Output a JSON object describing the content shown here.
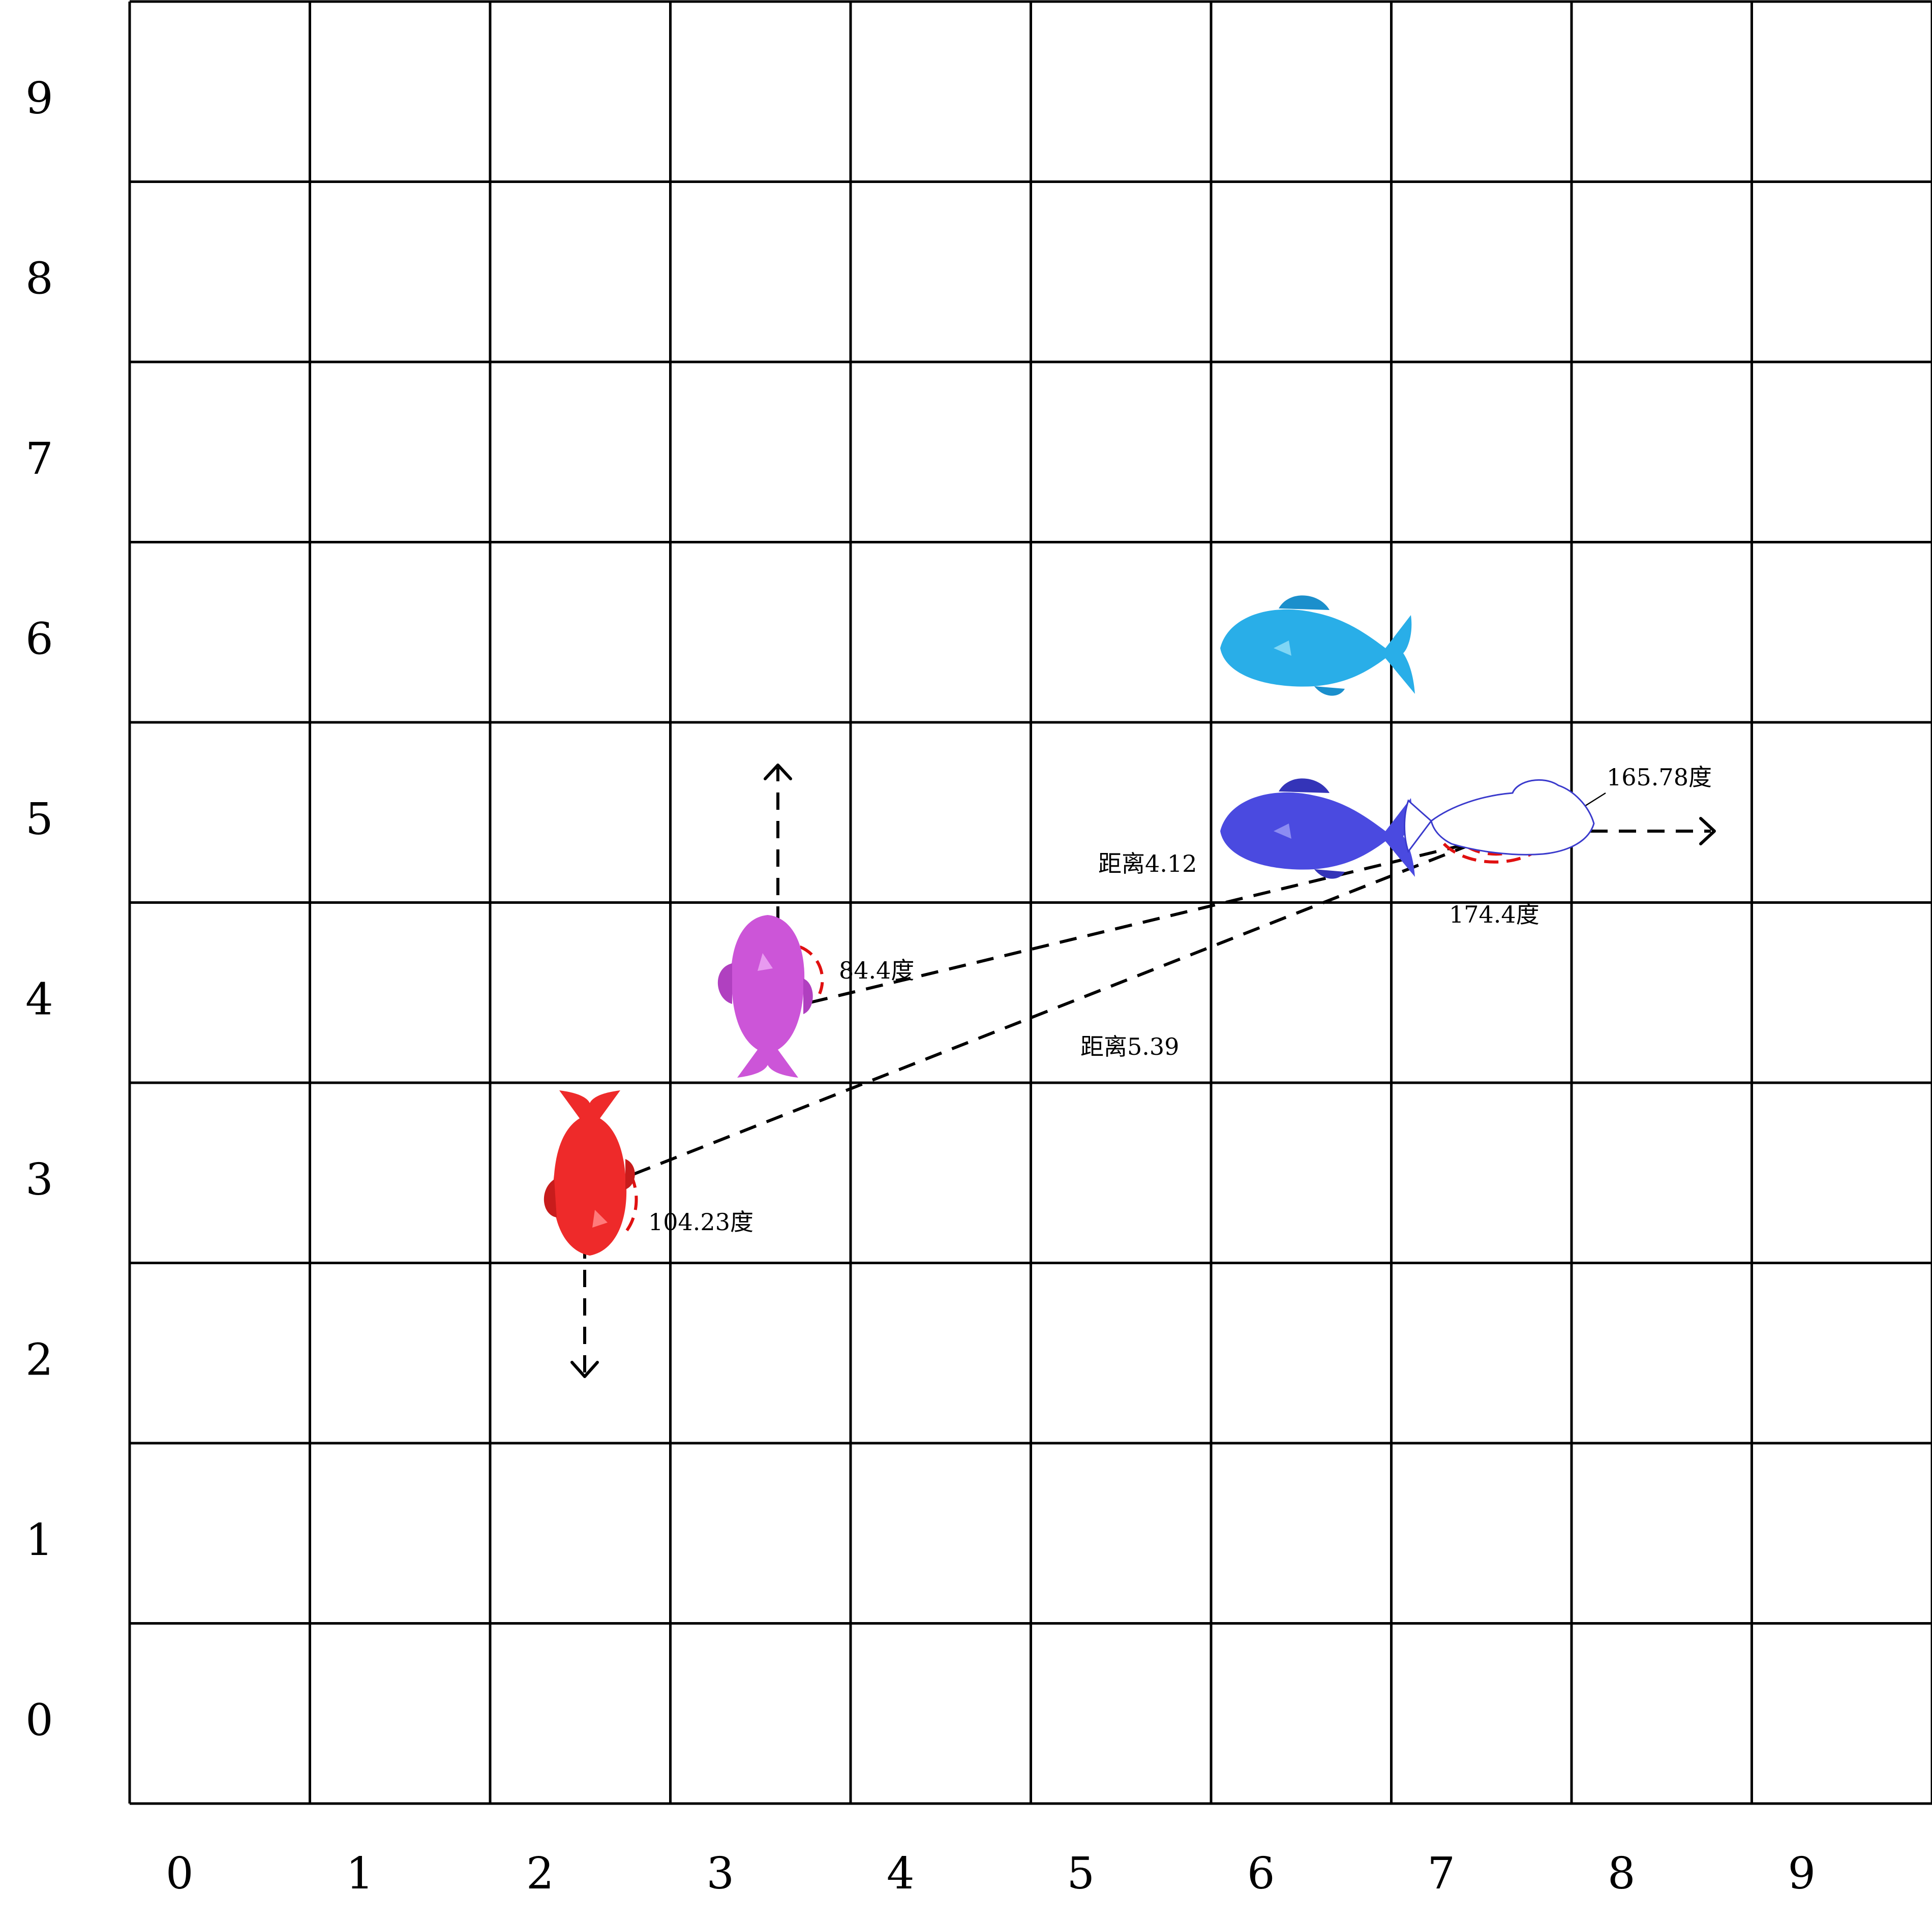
{
  "grid": {
    "cols": 10,
    "rows": 10,
    "x_labels": [
      "0",
      "1",
      "2",
      "3",
      "4",
      "5",
      "6",
      "7",
      "8",
      "9"
    ],
    "y_labels": [
      "0",
      "1",
      "2",
      "3",
      "4",
      "5",
      "6",
      "7",
      "8",
      "9"
    ]
  },
  "pieces": [
    {
      "id": "cyan-fish",
      "color": "#29aee8",
      "cell": [
        6,
        6
      ],
      "facing": "left",
      "style": "solid"
    },
    {
      "id": "blue-fish",
      "color": "#4a4ae0",
      "cell": [
        6,
        5
      ],
      "facing": "left",
      "style": "solid"
    },
    {
      "id": "outline-fish",
      "color": "#3a3acc",
      "cell": [
        7,
        5
      ],
      "facing": "left",
      "style": "outline"
    },
    {
      "id": "purple-fish",
      "color": "#cc55d8",
      "cell": [
        3,
        4
      ],
      "facing": "up",
      "style": "solid"
    },
    {
      "id": "red-fish",
      "color": "#ee2a2a",
      "cell": [
        2,
        3
      ],
      "facing": "down",
      "style": "solid"
    }
  ],
  "annotations": {
    "distance_1": "距离4.12",
    "distance_2": "距离5.39",
    "angle_outline_top": "165.78度",
    "angle_outline_bottom": "174.4度",
    "angle_purple": "84.4度",
    "angle_red": "104.23度"
  },
  "colors": {
    "grid_line": "#000000",
    "guide_line": "#000000",
    "angle_arc": "#e01010"
  }
}
